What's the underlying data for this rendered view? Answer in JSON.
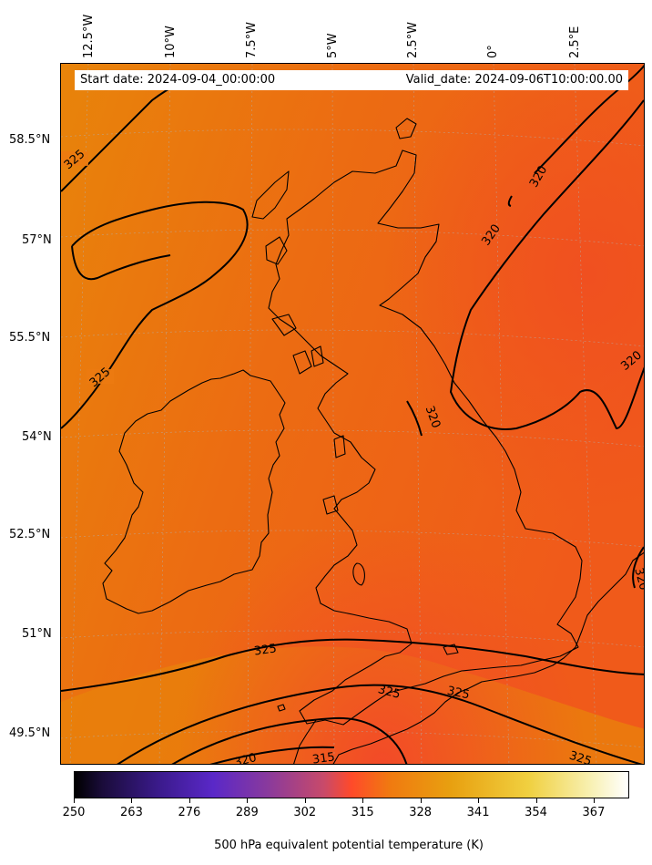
{
  "info": {
    "start_date": "Start date: 2024-09-04_00:00:00",
    "valid_date": "Valid_date: 2024-09-06T10:00:00.00"
  },
  "longitudes": [
    {
      "label": "12.5°W"
    },
    {
      "label": "10°W"
    },
    {
      "label": "7.5°W"
    },
    {
      "label": "5°W"
    },
    {
      "label": "2.5°W"
    },
    {
      "label": "0°"
    },
    {
      "label": "2.5°E"
    }
  ],
  "latitudes": [
    {
      "label": "58.5°N"
    },
    {
      "label": "57°N"
    },
    {
      "label": "55.5°N"
    },
    {
      "label": "54°N"
    },
    {
      "label": "52.5°N"
    },
    {
      "label": "51°N"
    },
    {
      "label": "49.5°N"
    }
  ],
  "contour_labels": [
    "325",
    "325",
    "320",
    "320",
    "320",
    "320",
    "325",
    "325",
    "325",
    "320",
    "315",
    "325",
    "320"
  ],
  "colorbar": {
    "title": "500 hPa equivalent potential temperature (K)",
    "ticks": [
      "250",
      "263",
      "276",
      "289",
      "302",
      "315",
      "328",
      "341",
      "354",
      "367"
    ],
    "range": [
      250,
      375
    ]
  },
  "colors": {
    "field_main": "#ec6a10",
    "field_light": "#e88a08",
    "field_dark": "#f05020",
    "contour": "#000000",
    "coast": "#000000"
  }
}
